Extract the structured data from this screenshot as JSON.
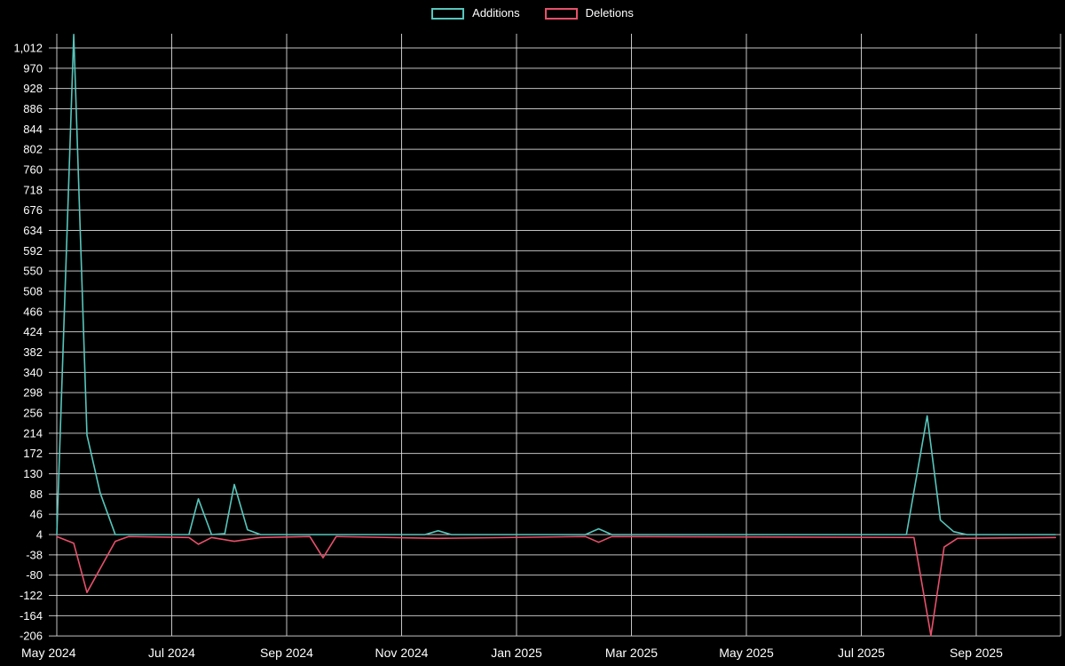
{
  "page": {
    "background": "#000000"
  },
  "colors": {
    "background": "#000000",
    "grid": "#e6e6e6",
    "text": "#ffffff",
    "additions": "#56c6bc",
    "deletions": "#e8506b"
  },
  "legend": {
    "items": [
      {
        "label": "Additions",
        "color": "#56c6bc"
      },
      {
        "label": "Deletions",
        "color": "#e8506b"
      }
    ]
  },
  "chart_data": {
    "type": "line",
    "title": "",
    "legend_position": "top-center",
    "grid": true,
    "background": "#000000",
    "ylim": [
      -206,
      1012
    ],
    "y_tick_step": 42,
    "y_ticks": {
      "values": [
        1012,
        970,
        928,
        886,
        844,
        802,
        760,
        718,
        676,
        634,
        592,
        550,
        508,
        466,
        424,
        382,
        340,
        298,
        256,
        214,
        172,
        130,
        88,
        46,
        4,
        -38,
        -80,
        -122,
        -164,
        -206
      ],
      "labels": [
        "1,012",
        "970",
        "928",
        "886",
        "844",
        "802",
        "760",
        "718",
        "676",
        "634",
        "592",
        "550",
        "508",
        "466",
        "424",
        "382",
        "340",
        "298",
        "256",
        "214",
        "172",
        "130",
        "88",
        "46",
        "4",
        "-38",
        "-80",
        "-122",
        "-164",
        "-206"
      ]
    },
    "x_ticks": {
      "labels": [
        "May 2024",
        "Jul 2024",
        "Sep 2024",
        "Nov 2024",
        "Jan 2025",
        "Mar 2025",
        "May 2025",
        "Jul 2025",
        "Sep 2025"
      ],
      "months_from_start": [
        0,
        2,
        4,
        6,
        8,
        10,
        12,
        14,
        16
      ]
    },
    "series": [
      {
        "name": "Additions",
        "color": "#56c6bc",
        "points": [
          [
            "2024-05-01",
            4
          ],
          [
            "2024-05-10",
            1040
          ],
          [
            "2024-05-17",
            210
          ],
          [
            "2024-05-24",
            90
          ],
          [
            "2024-06-01",
            4
          ],
          [
            "2024-07-10",
            4
          ],
          [
            "2024-07-15",
            78
          ],
          [
            "2024-07-22",
            4
          ],
          [
            "2024-07-29",
            6
          ],
          [
            "2024-08-03",
            108
          ],
          [
            "2024-08-10",
            14
          ],
          [
            "2024-08-17",
            4
          ],
          [
            "2024-11-12",
            4
          ],
          [
            "2024-11-19",
            12
          ],
          [
            "2024-11-26",
            4
          ],
          [
            "2025-02-05",
            4
          ],
          [
            "2025-02-12",
            16
          ],
          [
            "2025-02-19",
            4
          ],
          [
            "2025-07-25",
            4
          ],
          [
            "2025-08-05",
            250
          ],
          [
            "2025-08-12",
            34
          ],
          [
            "2025-08-19",
            10
          ],
          [
            "2025-08-26",
            4
          ],
          [
            "2025-10-12",
            4
          ]
        ]
      },
      {
        "name": "Deletions",
        "color": "#e8506b",
        "points": [
          [
            "2024-05-01",
            0
          ],
          [
            "2024-05-10",
            -14
          ],
          [
            "2024-05-17",
            -116
          ],
          [
            "2024-06-01",
            -10
          ],
          [
            "2024-06-08",
            0
          ],
          [
            "2024-07-10",
            -2
          ],
          [
            "2024-07-15",
            -16
          ],
          [
            "2024-07-22",
            -2
          ],
          [
            "2024-08-03",
            -10
          ],
          [
            "2024-08-17",
            -2
          ],
          [
            "2024-09-12",
            0
          ],
          [
            "2024-09-19",
            -44
          ],
          [
            "2024-09-26",
            0
          ],
          [
            "2024-11-19",
            -4
          ],
          [
            "2025-02-05",
            0
          ],
          [
            "2025-02-12",
            -12
          ],
          [
            "2025-02-19",
            0
          ],
          [
            "2025-07-29",
            -2
          ],
          [
            "2025-08-07",
            -205
          ],
          [
            "2025-08-14",
            -22
          ],
          [
            "2025-08-21",
            -4
          ],
          [
            "2025-10-12",
            -2
          ]
        ]
      }
    ]
  }
}
